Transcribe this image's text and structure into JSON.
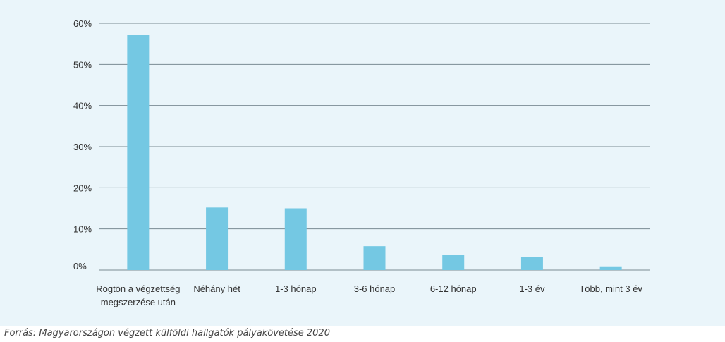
{
  "colors": {
    "background": "#eaf5fa",
    "bar": "#74c8e3",
    "grid": "#7a8a93"
  },
  "source": "Forrás: Magyarországon végzett külföldi hallgatók pályakövetése 2020",
  "chart_data": {
    "type": "bar",
    "title": "",
    "xlabel": "",
    "ylabel": "",
    "ylim": [
      0,
      60
    ],
    "y_ticks": [
      {
        "value": 0,
        "label": "0%"
      },
      {
        "value": 10,
        "label": "10%"
      },
      {
        "value": 20,
        "label": "20%"
      },
      {
        "value": 30,
        "label": "30%"
      },
      {
        "value": 40,
        "label": "40%"
      },
      {
        "value": 50,
        "label": "50%"
      },
      {
        "value": 60,
        "label": "60%"
      }
    ],
    "grid": true,
    "legend": "none",
    "categories": [
      [
        "Rögtön a végzettség",
        "megszerzése után"
      ],
      [
        "Néhány hét"
      ],
      [
        "1-3 hónap"
      ],
      [
        "3-6 hónap"
      ],
      [
        "6-12 hónap"
      ],
      [
        "1-3 év"
      ],
      [
        "Több, mint 3 év"
      ]
    ],
    "values": [
      57.2,
      15.2,
      15.0,
      5.8,
      3.7,
      3.1,
      0.9
    ]
  }
}
